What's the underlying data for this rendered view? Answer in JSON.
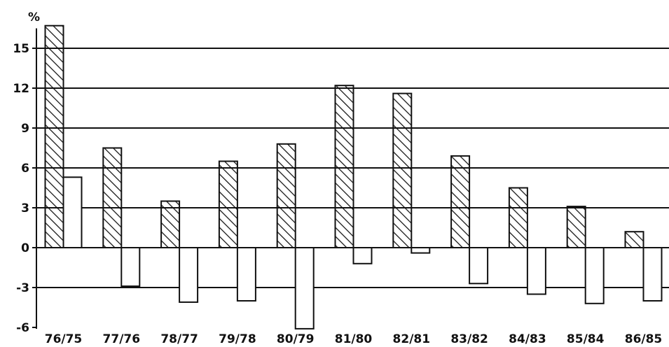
{
  "chart_data": {
    "type": "bar",
    "title": "",
    "xlabel": "",
    "ylabel": "%",
    "ylim": [
      -6,
      16.5
    ],
    "yticks": [
      15,
      12,
      9,
      6,
      3,
      0,
      -3,
      -6
    ],
    "grid": true,
    "categories": [
      "76/75",
      "77/76",
      "78/77",
      "79/78",
      "80/79",
      "81/80",
      "82/81",
      "83/82",
      "84/83",
      "85/84",
      "86/85"
    ],
    "series": [
      {
        "values": [
          16.7,
          7.5,
          3.5,
          6.5,
          7.8,
          12.2,
          11.6,
          6.9,
          4.5,
          3.1,
          1.2
        ],
        "pattern": "hatched"
      },
      {
        "values": [
          5.3,
          -2.9,
          -4.1,
          -4.0,
          -6.1,
          -1.2,
          -0.4,
          -2.7,
          -3.5,
          -4.2,
          -4.0
        ],
        "pattern": "plain"
      }
    ]
  }
}
